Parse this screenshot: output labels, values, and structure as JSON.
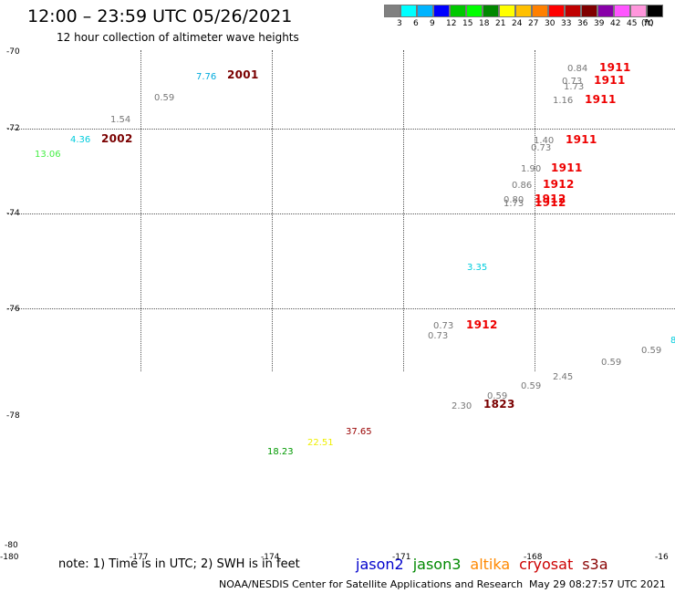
{
  "header": {
    "title": "12:00 – 23:59 UTC 05/26/2021",
    "subtitle": "12 hour collection of altimeter wave heights"
  },
  "legend": {
    "colors": [
      "#808080",
      "#00ffff",
      "#00b4ff",
      "#0000ff",
      "#00c800",
      "#00ff00",
      "#008800",
      "#ffff00",
      "#ffc000",
      "#ff8000",
      "#ff0000",
      "#c00000",
      "#800000",
      "#8800a8",
      "#ff55ff",
      "#ff96dc",
      "#000000"
    ],
    "labels": [
      "3",
      "6",
      "9",
      "12",
      "15",
      "18",
      "21",
      "24",
      "27",
      "30",
      "33",
      "36",
      "39",
      "42",
      "45",
      "70",
      "(ft)"
    ]
  },
  "axes": {
    "lat_labels": [
      "-70",
      "-72",
      "-74",
      "-76",
      "-78",
      "-80"
    ],
    "lon_labels": [
      "-180",
      "-177",
      "-174",
      "-171",
      "-168",
      "-16"
    ]
  },
  "markers": [
    {
      "text": "7.76",
      "kind": "val",
      "color": "#00aadd"
    },
    {
      "text": "2001",
      "kind": "time",
      "color": "#7a0000"
    },
    {
      "text": "0.59",
      "kind": "val",
      "color": "#777777"
    },
    {
      "text": "1.54",
      "kind": "val",
      "color": "#777777"
    },
    {
      "text": "4.36",
      "kind": "val",
      "color": "#00ccdd"
    },
    {
      "text": "2002",
      "kind": "time",
      "color": "#7a0000"
    },
    {
      "text": "13.06",
      "kind": "val",
      "color": "#44ee44"
    },
    {
      "text": "0.84",
      "kind": "val",
      "color": "#777777"
    },
    {
      "text": "1911",
      "kind": "time",
      "color": "#ee0000"
    },
    {
      "text": "0.73",
      "kind": "val",
      "color": "#777777"
    },
    {
      "text": "1911",
      "kind": "time",
      "color": "#ee0000"
    },
    {
      "text": "1.73",
      "kind": "val",
      "color": "#777777"
    },
    {
      "text": "1.16",
      "kind": "val",
      "color": "#777777"
    },
    {
      "text": "1911",
      "kind": "time",
      "color": "#ee0000"
    },
    {
      "text": "1.40",
      "kind": "val",
      "color": "#777777"
    },
    {
      "text": "0.73",
      "kind": "val",
      "color": "#777777"
    },
    {
      "text": "1911",
      "kind": "time",
      "color": "#ee0000"
    },
    {
      "text": "1.90",
      "kind": "val",
      "color": "#777777"
    },
    {
      "text": "1911",
      "kind": "time",
      "color": "#ee0000"
    },
    {
      "text": "0.86",
      "kind": "val",
      "color": "#777777"
    },
    {
      "text": "1912",
      "kind": "time",
      "color": "#ee0000"
    },
    {
      "text": "0.80",
      "kind": "val",
      "color": "#777777"
    },
    {
      "text": "1.73",
      "kind": "val",
      "color": "#777777"
    },
    {
      "text": "1912",
      "kind": "time",
      "color": "#ee0000"
    },
    {
      "text": "1912",
      "kind": "time",
      "color": "#ee0000"
    },
    {
      "text": "3.35",
      "kind": "val",
      "color": "#00ccdd"
    },
    {
      "text": "0.73",
      "kind": "val",
      "color": "#777777"
    },
    {
      "text": "1912",
      "kind": "time",
      "color": "#ee0000"
    },
    {
      "text": "0.73",
      "kind": "val",
      "color": "#777777"
    },
    {
      "text": "8",
      "kind": "val",
      "color": "#00ccdd"
    },
    {
      "text": "0.59",
      "kind": "val",
      "color": "#777777"
    },
    {
      "text": "0.59",
      "kind": "val",
      "color": "#777777"
    },
    {
      "text": "2.45",
      "kind": "val",
      "color": "#777777"
    },
    {
      "text": "0.59",
      "kind": "val",
      "color": "#777777"
    },
    {
      "text": "0.59",
      "kind": "val",
      "color": "#777777"
    },
    {
      "text": "2.30",
      "kind": "val",
      "color": "#777777"
    },
    {
      "text": "1823",
      "kind": "time",
      "color": "#7a0000"
    },
    {
      "text": "37.65",
      "kind": "val",
      "color": "#990000"
    },
    {
      "text": "22.51",
      "kind": "val",
      "color": "#eeee00"
    },
    {
      "text": "18.23",
      "kind": "val",
      "color": "#009900"
    }
  ],
  "footer": {
    "note": "note: 1) Time is in UTC; 2) SWH is in feet",
    "satellites": [
      {
        "name": "jason2",
        "color": "#0000cc"
      },
      {
        "name": "jason3",
        "color": "#008800"
      },
      {
        "name": "altika",
        "color": "#ff8800"
      },
      {
        "name": "cryosat",
        "color": "#cc0000"
      },
      {
        "name": "s3a",
        "color": "#880000"
      }
    ],
    "credit": "NOAA/NESDIS Center for Satellite Applications and Research",
    "stamp": "May 29 08:27:57 UTC 2021"
  }
}
